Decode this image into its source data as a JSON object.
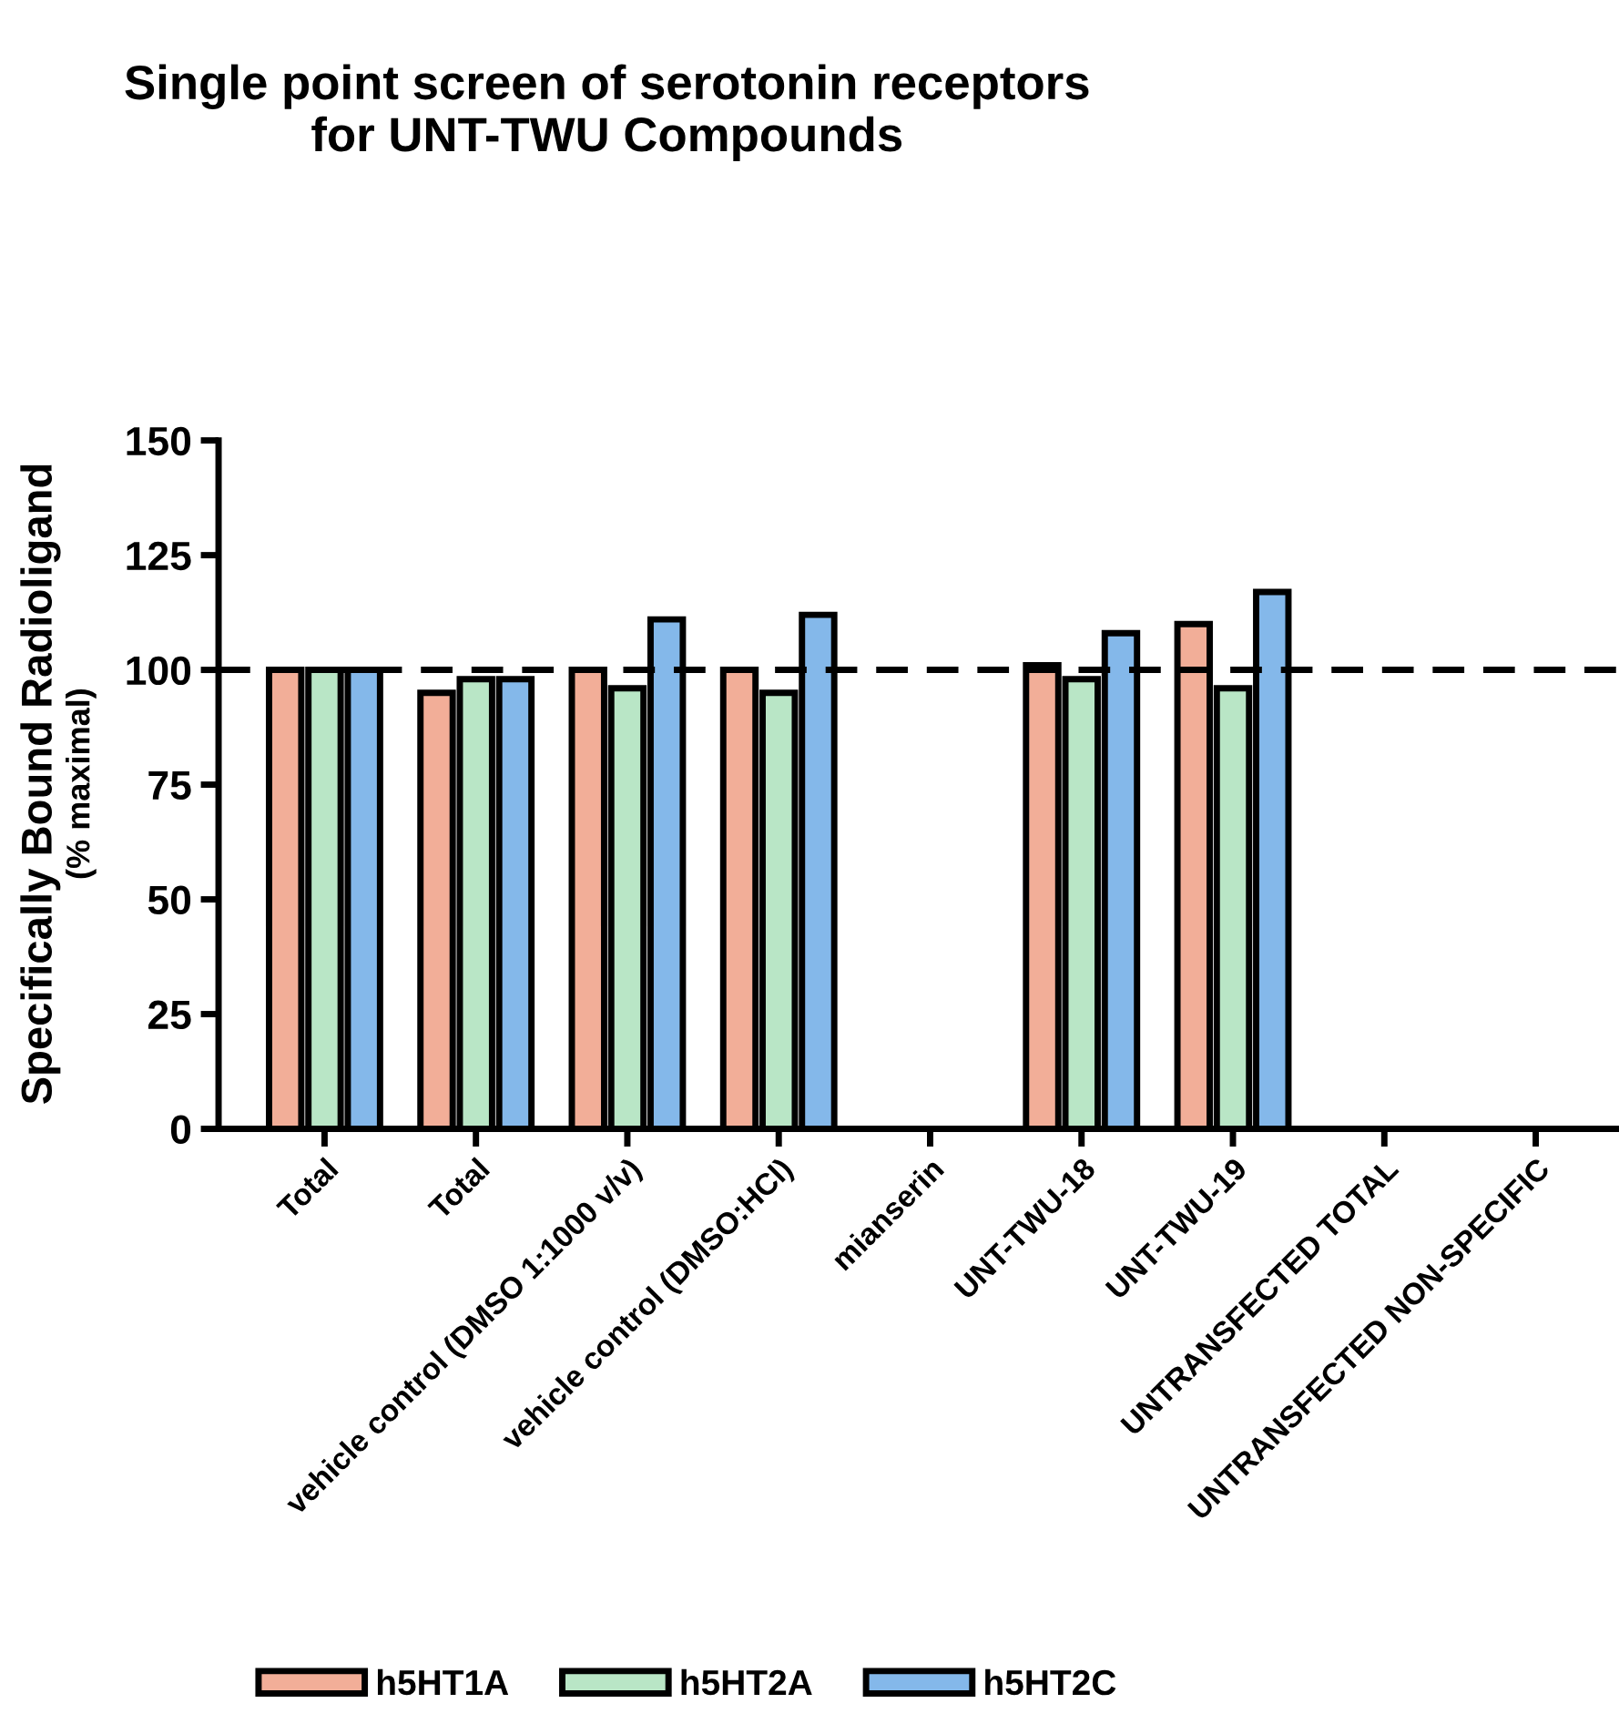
{
  "chart_data": {
    "type": "bar",
    "title": "Single point screen of serotonin receptors\nfor UNT-TWU Compounds",
    "ylabel": "Specifically Bound Radioligand\n(% maximal)",
    "categories": [
      "Total",
      "Total",
      "vehicle control (DMSO 1:1000 v/v)",
      "vehicle control (DMSO:HCl)",
      "mianserin",
      "UNT-TWU-18",
      "UNT-TWU-19",
      "UNTRANSFECTED TOTAL",
      "UNTRANSFECTED NON-SPECIFIC"
    ],
    "series": [
      {
        "name": "h5HT1A",
        "color": "#f2ae98",
        "values": [
          100,
          95,
          100,
          100,
          0,
          101,
          110,
          0,
          0
        ]
      },
      {
        "name": "h5HT2A",
        "color": "#b9e6c6",
        "values": [
          100,
          98,
          96,
          95,
          0,
          98,
          96,
          0,
          0
        ]
      },
      {
        "name": "h5HT2C",
        "color": "#84b8ea",
        "values": [
          100,
          98,
          111,
          112,
          0,
          108,
          117,
          0,
          0
        ]
      }
    ],
    "ylim": [
      0,
      150
    ],
    "yticks": [
      0,
      25,
      50,
      75,
      100,
      125,
      150
    ],
    "ref_lines": [
      {
        "axis": "y",
        "value": 100,
        "line_style": "dashed",
        "color": "#000000"
      }
    ],
    "grid": false,
    "legend": "bottom"
  }
}
